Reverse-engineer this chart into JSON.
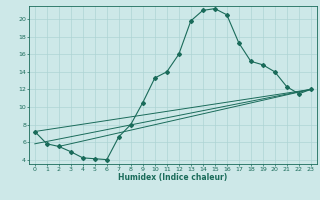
{
  "xlabel": "Humidex (Indice chaleur)",
  "ylabel": "",
  "bg_color": "#cde8e8",
  "line_color": "#1a6b5a",
  "grid_color": "#aed4d4",
  "xlim": [
    -0.5,
    23.5
  ],
  "ylim": [
    3.5,
    21.5
  ],
  "xticks": [
    0,
    1,
    2,
    3,
    4,
    5,
    6,
    7,
    8,
    9,
    10,
    11,
    12,
    13,
    14,
    15,
    16,
    17,
    18,
    19,
    20,
    21,
    22,
    23
  ],
  "yticks": [
    4,
    6,
    8,
    10,
    12,
    14,
    16,
    18,
    20
  ],
  "curve1_x": [
    0,
    1,
    2,
    3,
    4,
    5,
    6,
    7,
    8,
    9,
    10,
    11,
    12,
    13,
    14,
    15,
    16,
    17,
    18,
    19,
    20,
    21,
    22,
    23
  ],
  "curve1_y": [
    7.2,
    5.8,
    5.5,
    4.9,
    4.2,
    4.1,
    4.0,
    6.6,
    8.0,
    10.5,
    13.3,
    14.0,
    16.0,
    19.8,
    21.0,
    21.2,
    20.5,
    17.3,
    15.2,
    14.8,
    14.0,
    12.3,
    11.5,
    12.0
  ],
  "line1_x": [
    0,
    23
  ],
  "line1_y": [
    7.2,
    12.0
  ],
  "line2_x": [
    0,
    23
  ],
  "line2_y": [
    5.8,
    12.0
  ],
  "line3_x": [
    2,
    23
  ],
  "line3_y": [
    5.5,
    12.0
  ],
  "tick_fontsize": 4.5,
  "xlabel_fontsize": 5.5
}
